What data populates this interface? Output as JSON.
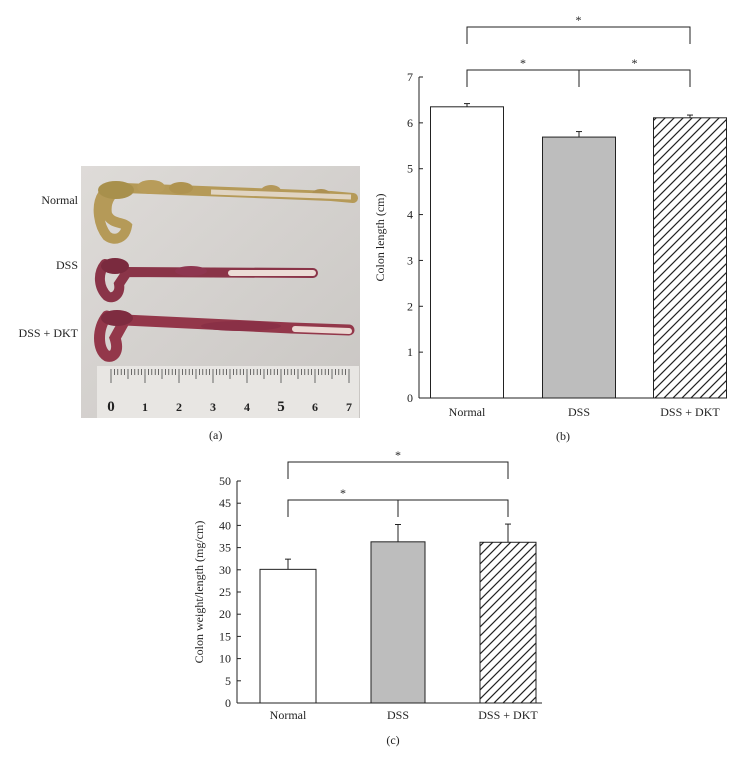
{
  "panel_a": {
    "tag": "(a)",
    "row_labels": [
      "Normal",
      "DSS",
      "DSS + DKT"
    ],
    "ruler_numbers": [
      "0",
      "1",
      "2",
      "3",
      "4",
      "5",
      "6",
      "7"
    ]
  },
  "chart_data": [
    {
      "panel": "(b)",
      "type": "bar",
      "categories": [
        "Normal",
        "DSS",
        "DSS + DKT"
      ],
      "values": [
        6.35,
        5.69,
        6.11
      ],
      "errors": [
        0.07,
        0.12,
        0.06
      ],
      "fills": [
        "white",
        "gray",
        "hatched"
      ],
      "ylabel": "Colon length (cm)",
      "ylim": [
        0,
        7
      ],
      "yticks": [
        "0",
        "1",
        "2",
        "3",
        "4",
        "5",
        "6",
        "7"
      ],
      "significance": [
        {
          "from": 0,
          "to": 1,
          "label": "*"
        },
        {
          "from": 1,
          "to": 2,
          "label": "*"
        },
        {
          "from": 0,
          "to": 2,
          "label": "*"
        }
      ],
      "grid": false,
      "legend": "none"
    },
    {
      "panel": "(c)",
      "type": "bar",
      "categories": [
        "Normal",
        "DSS",
        "DSS + DKT"
      ],
      "values": [
        30.1,
        36.3,
        36.2
      ],
      "errors": [
        2.3,
        3.9,
        4.1
      ],
      "fills": [
        "white",
        "gray",
        "hatched"
      ],
      "ylabel": "Colon weight/length (mg/cm)",
      "ylim": [
        0,
        50
      ],
      "yticks": [
        "0",
        "5",
        "10",
        "15",
        "20",
        "25",
        "30",
        "35",
        "40",
        "45",
        "50"
      ],
      "significance": [
        {
          "from": 0,
          "to": 1,
          "label": "*"
        },
        {
          "from": 1,
          "to": 2,
          "label": ""
        },
        {
          "from": 0,
          "to": 2,
          "label": "*"
        }
      ],
      "grid": false,
      "legend": "none"
    }
  ],
  "colors": {
    "axis": "#222222",
    "bar_gray": "#bdbdbd",
    "bar_white": "#ffffff",
    "photo_background": "#d6d3d0"
  }
}
